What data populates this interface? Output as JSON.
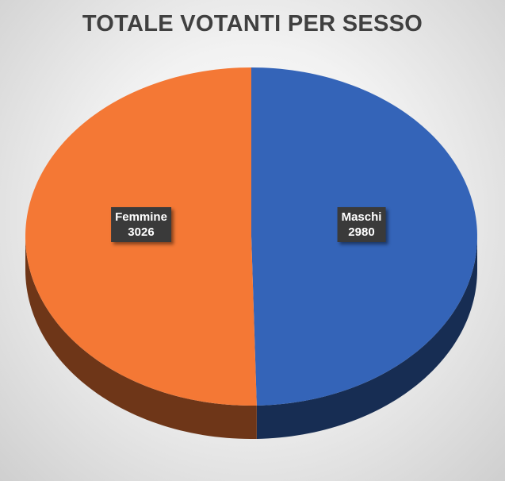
{
  "chart_data": {
    "type": "pie",
    "style": "3d",
    "title": "TOTALE VOTANTI PER SESSO",
    "series": [
      {
        "label": "Maschi",
        "value": 2980,
        "color": "#3464b8"
      },
      {
        "label": "Femmine",
        "value": 3026,
        "color": "#f47835"
      }
    ],
    "data_labels": "inside, category name and value",
    "legend": "none"
  }
}
